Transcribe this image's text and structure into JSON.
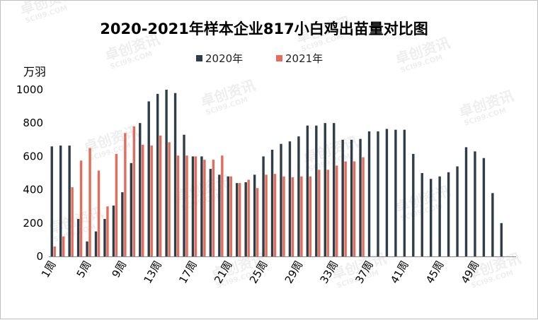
{
  "chart_data": {
    "type": "bar",
    "title": "2020-2021年样本企业817小白鸡出苗量对比图",
    "ylabel": "万羽",
    "ylim": [
      0,
      1000
    ],
    "yticks": [
      0,
      200,
      400,
      600,
      800,
      1000
    ],
    "grid": false,
    "legend_position": "top",
    "categories": [
      "1周",
      "2周",
      "3周",
      "4周",
      "5周",
      "6周",
      "7周",
      "8周",
      "9周",
      "10周",
      "11周",
      "12周",
      "13周",
      "14周",
      "15周",
      "16周",
      "17周",
      "18周",
      "19周",
      "20周",
      "21周",
      "22周",
      "23周",
      "24周",
      "25周",
      "26周",
      "27周",
      "28周",
      "29周",
      "30周",
      "31周",
      "32周",
      "33周",
      "34周",
      "35周",
      "36周",
      "37周",
      "38周",
      "39周",
      "40周",
      "41周",
      "42周",
      "43周",
      "44周",
      "45周",
      "46周",
      "47周",
      "48周",
      "49周",
      "50周",
      "51周",
      "52周",
      "53周"
    ],
    "x_tick_labels": [
      "1周",
      "5周",
      "9周",
      "13周",
      "17周",
      "21周",
      "25周",
      "29周",
      "33周",
      "37周",
      "41周",
      "45周",
      "49周"
    ],
    "series": [
      {
        "name": "2020年",
        "color": "#2e3d47",
        "values": [
          660,
          665,
          665,
          225,
          90,
          150,
          225,
          305,
          385,
          560,
          800,
          930,
          975,
          1000,
          980,
          730,
          600,
          600,
          525,
          490,
          480,
          440,
          445,
          490,
          600,
          640,
          675,
          690,
          720,
          785,
          785,
          800,
          800,
          700,
          700,
          705,
          750,
          750,
          765,
          760,
          760,
          615,
          500,
          465,
          480,
          505,
          540,
          655,
          630,
          590,
          380,
          200,
          null
        ]
      },
      {
        "name": "2021年",
        "color": "#e46c5a",
        "values": [
          60,
          120,
          415,
          575,
          650,
          515,
          300,
          615,
          740,
          780,
          670,
          665,
          725,
          685,
          605,
          605,
          600,
          580,
          580,
          605,
          480,
          440,
          460,
          410,
          490,
          495,
          480,
          475,
          480,
          480,
          520,
          520,
          545,
          570,
          570,
          595,
          null,
          null,
          null,
          null,
          null,
          null,
          null,
          null,
          null,
          null,
          null,
          null,
          null,
          null,
          null,
          null,
          null
        ]
      }
    ]
  },
  "watermark": {
    "brand": "卓创资讯",
    "site": "SCI99.COM",
    "color": "#cfcfcf"
  }
}
